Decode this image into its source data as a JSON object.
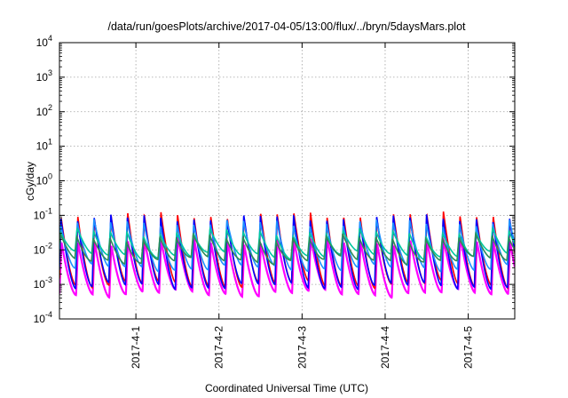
{
  "chart_data": {
    "type": "line",
    "title": "/data/run/goesPlots/archive/2017-04-05/13:00/flux/../bryn/5daysMars.plot",
    "xlabel": "Coordinated Universal Time (UTC)",
    "ylabel": "cGy/day",
    "yscale": "log",
    "ylim_exponents": [
      -4,
      4
    ],
    "y_tick_base": "10",
    "y_tick_exponents": [
      "-4",
      "-3",
      "-2",
      "-1",
      "0",
      "1",
      "2",
      "3",
      "4"
    ],
    "xlim_days": [
      -0.92,
      4.56
    ],
    "x_tick_labels": [
      "2017-4-1",
      "2017-4-2",
      "2017-4-3",
      "2017-4-4",
      "2017-4-5"
    ],
    "x_tick_days": [
      0,
      1,
      2,
      3,
      4
    ],
    "grid": true,
    "legend": "none",
    "cycle_days": 0.2,
    "series": [
      {
        "color": "#ff00ff",
        "peak": 0.018,
        "trough": 0.00055
      },
      {
        "color": "#ff0000",
        "peak": 0.1,
        "trough": 0.001
      },
      {
        "color": "#0000ff",
        "peak": 0.085,
        "trough": 0.0009
      },
      {
        "color": "#1e90ff",
        "peak": 0.06,
        "trough": 0.003
      },
      {
        "color": "#00c8a0",
        "peak": 0.032,
        "trough": 0.007
      },
      {
        "color": "#2e8b57",
        "peak": 0.022,
        "trough": 0.005
      }
    ]
  }
}
